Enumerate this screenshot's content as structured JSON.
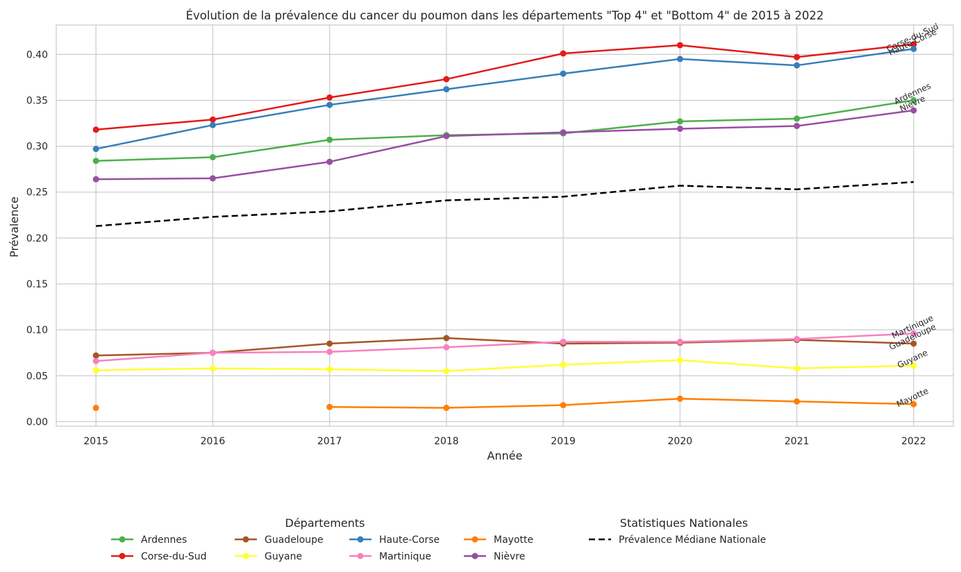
{
  "chart_data": {
    "type": "line",
    "title": "Évolution de la prévalence du cancer du poumon dans les départements \"Top 4\" et \"Bottom 4\" de 2015 à 2022",
    "xlabel": "Année",
    "ylabel": "Prévalence",
    "x": [
      "2015",
      "2016",
      "2017",
      "2018",
      "2019",
      "2020",
      "2021",
      "2022"
    ],
    "xlim": [
      2014.66,
      2022.34
    ],
    "ylim": [
      -0.005,
      0.432
    ],
    "yticks": [
      "0.00",
      "0.05",
      "0.10",
      "0.15",
      "0.20",
      "0.25",
      "0.30",
      "0.35",
      "0.40"
    ],
    "grid": true,
    "legend_placement": "bottom-center",
    "series": [
      {
        "name": "Ardennes",
        "color": "#4daf4a",
        "values": [
          0.284,
          0.288,
          0.307,
          0.312,
          0.314,
          0.327,
          0.33,
          0.35
        ]
      },
      {
        "name": "Corse-du-Sud",
        "color": "#e41a1c",
        "values": [
          0.318,
          0.329,
          0.353,
          0.373,
          0.401,
          0.41,
          0.397,
          0.411
        ]
      },
      {
        "name": "Guadeloupe",
        "color": "#a65628",
        "values": [
          0.072,
          0.075,
          0.085,
          0.091,
          0.085,
          0.086,
          0.089,
          0.085
        ]
      },
      {
        "name": "Guyane",
        "color": "#ffff33",
        "values": [
          0.056,
          0.058,
          0.057,
          0.055,
          0.062,
          0.067,
          0.058,
          0.061
        ]
      },
      {
        "name": "Haute-Corse",
        "color": "#377eb8",
        "values": [
          0.297,
          0.323,
          0.345,
          0.362,
          0.379,
          0.395,
          0.388,
          0.406
        ]
      },
      {
        "name": "Martinique",
        "color": "#f781bf",
        "values": [
          0.066,
          0.075,
          0.076,
          0.081,
          0.087,
          0.087,
          0.09,
          0.096
        ]
      },
      {
        "name": "Mayotte",
        "color": "#ff7f00",
        "values": [
          0.015,
          null,
          0.016,
          0.015,
          0.018,
          0.025,
          0.022,
          0.019
        ]
      },
      {
        "name": "Nièvre",
        "color": "#984ea3",
        "values": [
          0.264,
          0.265,
          0.283,
          0.311,
          0.315,
          0.319,
          0.322,
          0.339
        ]
      }
    ],
    "reference_series": {
      "name": "Prévalence Médiane Nationale",
      "color": "#000000",
      "style": "dashed",
      "values": [
        0.213,
        0.223,
        0.229,
        0.241,
        0.245,
        0.257,
        0.253,
        0.261
      ]
    },
    "end_labels": [
      {
        "name": "Corse-du-Sud",
        "value": 0.411,
        "color": "#999999"
      },
      {
        "name": "Haute-Corse",
        "value": 0.406,
        "color": "#262626"
      },
      {
        "name": "Ardennes",
        "value": 0.35,
        "color": "#262626"
      },
      {
        "name": "Nièvre",
        "value": 0.339,
        "color": "#262626"
      },
      {
        "name": "Martinique",
        "value": 0.096,
        "color": "#262626"
      },
      {
        "name": "Guadeloupe",
        "value": 0.085,
        "color": "#262626"
      },
      {
        "name": "Guyane",
        "value": 0.061,
        "color": "#262626"
      },
      {
        "name": "Mayotte",
        "value": 0.019,
        "color": "#262626"
      }
    ],
    "legend": {
      "departments_title": "Départements",
      "national_title": "Statistiques Nationales",
      "departments_order": [
        "Ardennes",
        "Corse-du-Sud",
        "Guadeloupe",
        "Guyane",
        "Haute-Corse",
        "Martinique",
        "Mayotte",
        "Nièvre"
      ],
      "national_entry": "Prévalence Médiane Nationale"
    }
  }
}
